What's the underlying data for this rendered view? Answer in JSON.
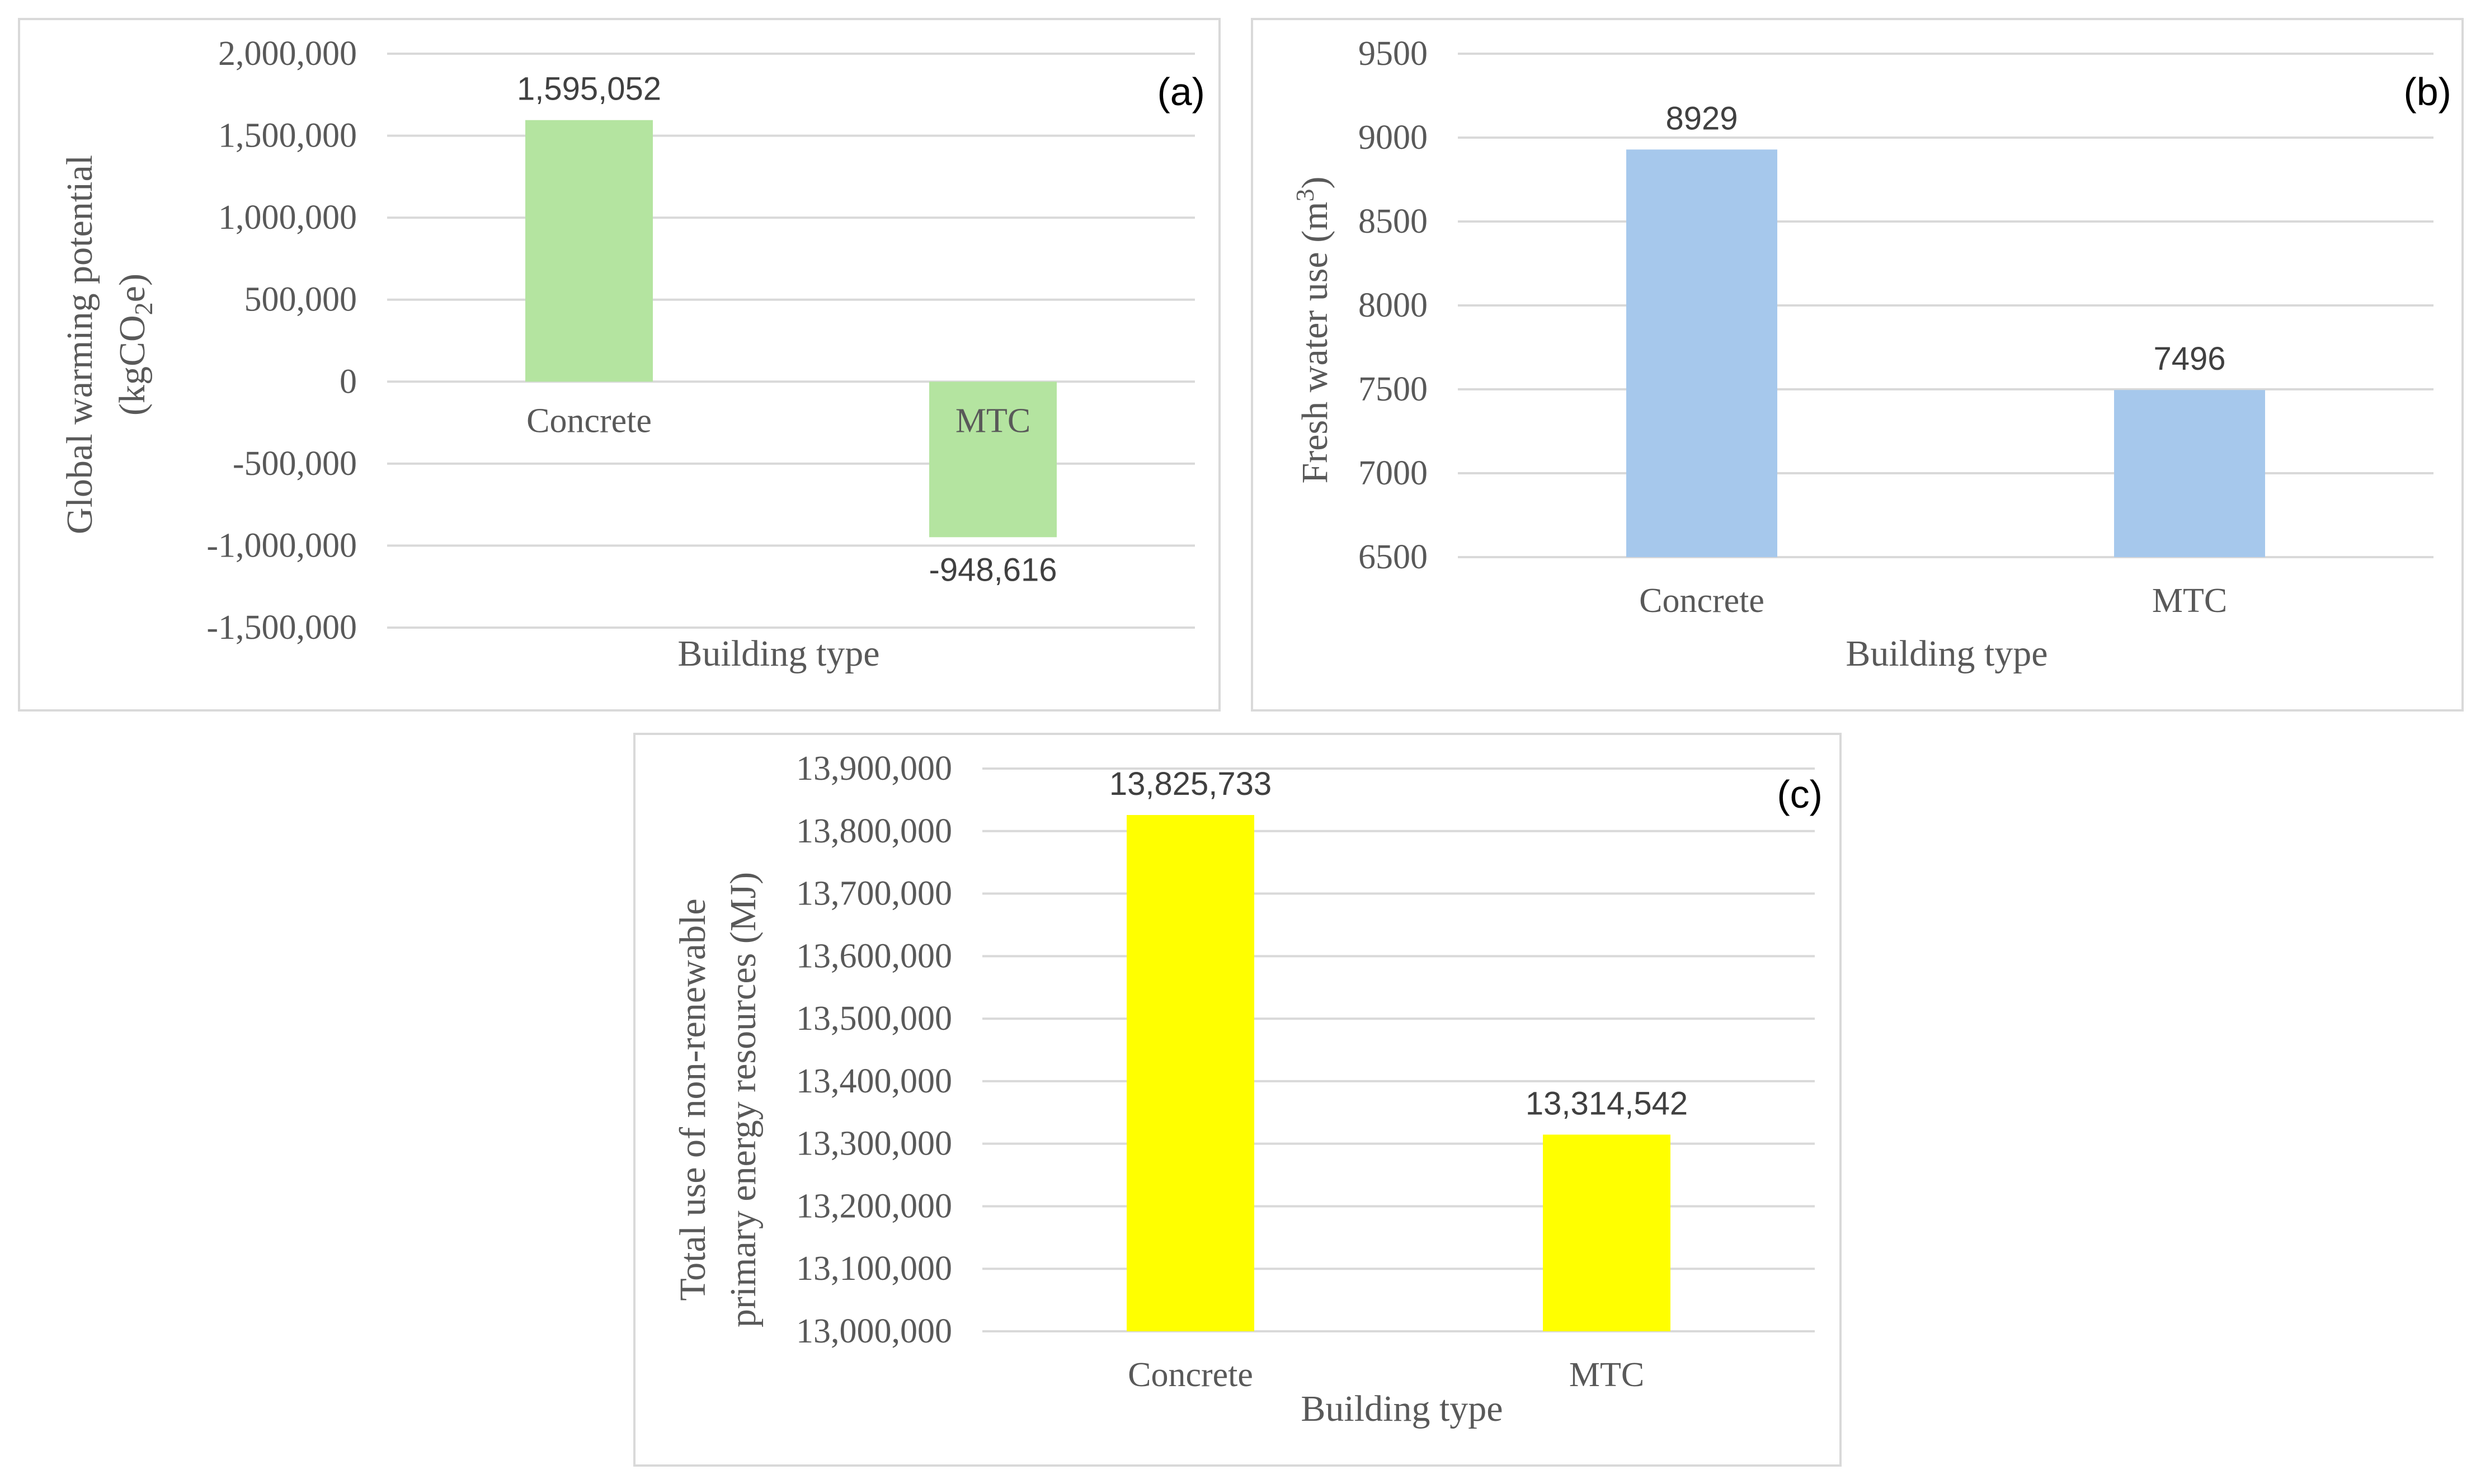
{
  "chart_data": [
    {
      "type": "bar",
      "panel_label": "(a)",
      "categories": [
        "Concrete",
        "MTC"
      ],
      "values": [
        1595052,
        -948616
      ],
      "data_labels": [
        "1,595,052",
        "-948,616"
      ],
      "ylabel_line1": "Global warming potential",
      "ylabel_line2_prefix": "(kgCO",
      "ylabel_line2_sub": "2",
      "ylabel_line2_suffix": "e)",
      "xlabel": "Building type",
      "ylim": [
        -1500000,
        2000000
      ],
      "yticks": [
        2000000,
        1500000,
        1000000,
        500000,
        0,
        -500000,
        -1000000,
        -1500000
      ],
      "ytick_labels": [
        "2,000,000",
        "1,500,000",
        "1,000,000",
        "500,000",
        "0",
        "-500,000",
        "-1,000,000",
        "-1,500,000"
      ],
      "bar_color": "#b4e4a0",
      "grid": true
    },
    {
      "type": "bar",
      "panel_label": "(b)",
      "categories": [
        "Concrete",
        "MTC"
      ],
      "values": [
        8929,
        7496
      ],
      "data_labels": [
        "8929",
        "7496"
      ],
      "ylabel_prefix": "Fresh water use (m",
      "ylabel_sup": "3",
      "ylabel_suffix": ")",
      "xlabel": "Building type",
      "ylim": [
        6500,
        9500
      ],
      "yticks": [
        9500,
        9000,
        8500,
        8000,
        7500,
        7000,
        6500
      ],
      "ytick_labels": [
        "9500",
        "9000",
        "8500",
        "8000",
        "7500",
        "7000",
        "6500"
      ],
      "bar_color": "#a6c8ec",
      "grid": true
    },
    {
      "type": "bar",
      "panel_label": "(c)",
      "categories": [
        "Concrete",
        "MTC"
      ],
      "values": [
        13825733,
        13314542
      ],
      "data_labels": [
        "13,825,733",
        "13,314,542"
      ],
      "ylabel_line1": "Total use of non-renewable",
      "ylabel_line2": "primary energy resources (MJ)",
      "xlabel": "Building type",
      "ylim": [
        13000000,
        13900000
      ],
      "yticks": [
        13900000,
        13800000,
        13700000,
        13600000,
        13500000,
        13400000,
        13300000,
        13200000,
        13100000,
        13000000
      ],
      "ytick_labels": [
        "13,900,000",
        "13,800,000",
        "13,700,000",
        "13,600,000",
        "13,500,000",
        "13,400,000",
        "13,300,000",
        "13,200,000",
        "13,100,000",
        "13,000,000"
      ],
      "bar_color": "#ffff00",
      "grid": true
    }
  ]
}
